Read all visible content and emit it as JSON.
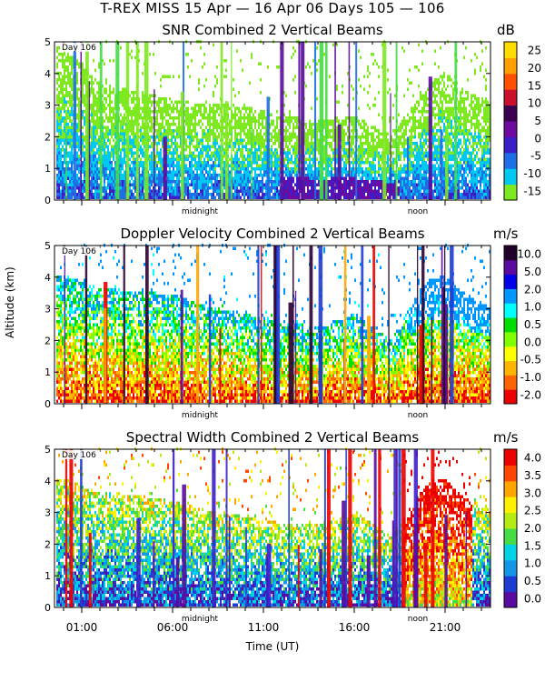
{
  "header": {
    "title": "T-REX MISS    15 Apr — 16 Apr 06 Days 105 — 106"
  },
  "x_axis": {
    "label": "Time (UT)",
    "ticks": [
      "01:00",
      "06:00",
      "11:00",
      "16:00",
      "21:00"
    ],
    "tick_hours": [
      1,
      6,
      11,
      16,
      21
    ],
    "range_hours": [
      -0.5,
      23.5
    ],
    "markers": [
      {
        "label": "midnight",
        "hour": 7.5
      },
      {
        "label": "noon",
        "hour": 19.5
      }
    ]
  },
  "y_axis": {
    "label": "Altitude (km)",
    "range_km": [
      0,
      5
    ],
    "ticks": [
      "0",
      "1",
      "2",
      "3",
      "4",
      "5"
    ]
  },
  "colors": {
    "scale": [
      "#5a0a9e",
      "#1e3cd2",
      "#1496e6",
      "#00d2e6",
      "#28c8a0",
      "#46dc46",
      "#b4eb14",
      "#fff000",
      "#ffa500",
      "#ff4600",
      "#eb0000"
    ],
    "snr_bar": [
      "#7ee820",
      "#00c8f0",
      "#1e6ee6",
      "#3c1ec8",
      "#6e0aa0",
      "#3c0050",
      "#c8102e",
      "#ff5000",
      "#ffa000",
      "#ffdc00"
    ],
    "velocity_bar": [
      "#eb0000",
      "#ff6400",
      "#ffb400",
      "#ffff00",
      "#80ff00",
      "#00dc00",
      "#00ffff",
      "#0096ff",
      "#0000e6",
      "#5a0a9e",
      "#1e0028"
    ],
    "width_bar": [
      "#5a0a9e",
      "#1e3cd2",
      "#1496e6",
      "#00d2e6",
      "#46dc46",
      "#b4eb14",
      "#fff000",
      "#ffa500",
      "#ff4600",
      "#eb0000"
    ]
  },
  "chart_data": [
    {
      "type": "heatmap",
      "title": "SNR Combined 2 Vertical Beams",
      "day_label": "Day 106",
      "xlabel": "Time (UT)",
      "ylabel": "",
      "ylim": [
        0,
        5
      ],
      "colorbar": {
        "unit": "dB",
        "ticks": [
          "25",
          "20",
          "15",
          "10",
          "5",
          "0",
          "-5",
          "-10",
          "-15"
        ]
      },
      "profile": {
        "hours": [
          0,
          2,
          4,
          6,
          8,
          10,
          12,
          14,
          16,
          18,
          20,
          21,
          22,
          23.5
        ],
        "top_km": [
          4.8,
          3.6,
          3.4,
          3.1,
          3.0,
          2.9,
          2.6,
          2.5,
          2.6,
          2.0,
          3.6,
          4.0,
          3.4,
          3.1
        ]
      }
    },
    {
      "type": "heatmap",
      "title": "Doppler Velocity Combined 2 Vertical Beams",
      "day_label": "Day 106",
      "xlabel": "Time (UT)",
      "ylabel": "Altitude (km)",
      "ylim": [
        0,
        5
      ],
      "colorbar": {
        "unit": "m/s",
        "ticks": [
          "10.0",
          "5.0",
          "2.0",
          "1.0",
          "0.5",
          "0.0",
          "-0.5",
          "-1.0",
          "-2.0"
        ]
      },
      "profile": {
        "hours": [
          0,
          2,
          4,
          6,
          8,
          10,
          12,
          14,
          16,
          18,
          20,
          21,
          22,
          23.5
        ],
        "top_km": [
          4.0,
          3.6,
          3.5,
          3.4,
          3.0,
          2.8,
          2.5,
          2.4,
          2.8,
          2.0,
          3.9,
          4.0,
          3.4,
          3.0
        ]
      }
    },
    {
      "type": "heatmap",
      "title": "Spectral Width Combined 2 Vertical Beams",
      "day_label": "Day 106",
      "xlabel": "Time (UT)",
      "ylabel": "",
      "ylim": [
        0,
        5
      ],
      "colorbar": {
        "unit": "m/s",
        "ticks": [
          "4.0",
          "3.5",
          "3.0",
          "2.5",
          "2.0",
          "1.5",
          "1.0",
          "0.5",
          "0.0"
        ]
      },
      "profile": {
        "hours": [
          0,
          2,
          4,
          6,
          8,
          10,
          12,
          14,
          16,
          18,
          20,
          21,
          22,
          23.5
        ],
        "top_km": [
          4.0,
          3.6,
          3.5,
          3.3,
          3.0,
          2.8,
          2.6,
          2.6,
          3.0,
          2.2,
          3.9,
          4.0,
          3.4,
          3.1
        ]
      }
    }
  ]
}
